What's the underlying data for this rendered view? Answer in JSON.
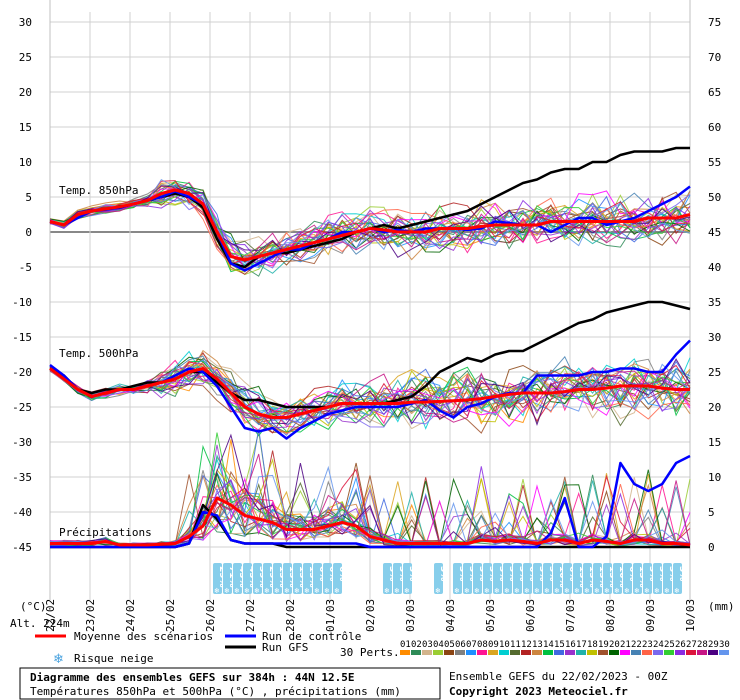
{
  "chart_data": {
    "type": "line",
    "title": "Diagramme des ensembles GEFS sur 384h : 44N 12.5E",
    "subtitle": "Températures 850hPa et 500hPa (°C) , précipitations (mm)",
    "run_info": "Ensemble GEFS du 22/02/2023 - 00Z",
    "copyright": "Copyright 2023 Meteociel.fr",
    "left_axis_unit": "(°C)",
    "right_axis_unit": "(mm)",
    "altitude": "Alt. 224m",
    "left_ticks": [
      30,
      25,
      20,
      15,
      10,
      5,
      0,
      -5,
      -10,
      -15,
      -20,
      -25,
      -30,
      -35,
      -40,
      -45
    ],
    "right_ticks": [
      75,
      70,
      65,
      60,
      55,
      50,
      45,
      40,
      35,
      30,
      25,
      20,
      15,
      10,
      5,
      0
    ],
    "ylim": [
      -45,
      30
    ],
    "y2lim": [
      0,
      75
    ],
    "x_labels": [
      "22/02",
      "23/02",
      "24/02",
      "25/02",
      "26/02",
      "27/02",
      "28/02",
      "01/03",
      "02/03",
      "03/03",
      "04/03",
      "05/03",
      "06/03",
      "07/03",
      "08/03",
      "09/03",
      "10/03"
    ],
    "panel_labels": {
      "t850": "Temp. 850hPa",
      "t500": "Temp. 500hPa",
      "precip": "Précipitations"
    },
    "legend": {
      "mean": "Moyenne des scénarios",
      "control": "Run de contrôle",
      "gfs": "Run GFS",
      "snow": "Risque neige",
      "perts": "30 Perts."
    },
    "pert_numbers": [
      "01",
      "02",
      "03",
      "04",
      "05",
      "06",
      "07",
      "08",
      "09",
      "10",
      "11",
      "12",
      "13",
      "14",
      "15",
      "16",
      "17",
      "18",
      "19",
      "20",
      "21",
      "22",
      "23",
      "24",
      "25",
      "26",
      "27",
      "28",
      "29",
      "30"
    ],
    "pert_colors": [
      "#ff8c00",
      "#2e8b57",
      "#d2b48c",
      "#9acd32",
      "#8b4513",
      "#808080",
      "#1e90ff",
      "#ff1493",
      "#daa520",
      "#00ced1",
      "#556b2f",
      "#b22222",
      "#cd853f",
      "#00c040",
      "#4169e1",
      "#9932cc",
      "#20b2aa",
      "#c0c000",
      "#a0522d",
      "#006400",
      "#ff00ff",
      "#4682b4",
      "#ff6347",
      "#7b68ee",
      "#32cd32",
      "#8a2be2",
      "#dc143c",
      "#c71585",
      "#4b0082",
      "#6495ed"
    ],
    "colors": {
      "mean": "#ff0000",
      "control": "#0000ff",
      "gfs": "#000000",
      "snow_box": "#87ceeb"
    },
    "snow_risk": {
      "group1": [
        "29%",
        "71%",
        "45%",
        "45%",
        "39%",
        "29%",
        "13%",
        "13%",
        "13%",
        "13%",
        "6%",
        "6%",
        "6%"
      ],
      "group2": [
        "3%",
        "3%",
        "3%"
      ],
      "group3": [
        "3%"
      ],
      "group4": [
        "3%",
        "3%",
        "3%",
        "3%",
        "3%",
        "3%",
        "3%",
        "6%",
        "3%",
        "3%",
        "10%",
        "6%",
        "13%",
        "13%",
        "13%",
        "13%",
        "10%",
        "6%",
        "13%",
        "3%",
        "3%",
        "3%",
        "3%"
      ]
    },
    "series": [
      {
        "name": "Moyenne des scénarios",
        "t850": [
          1.5,
          1,
          2.5,
          3,
          3.3,
          3.6,
          4,
          4.5,
          5.5,
          6,
          5.5,
          4,
          0,
          -3.5,
          -4,
          -3.5,
          -3,
          -2.5,
          -2,
          -1.5,
          -1,
          -0.5,
          0,
          0.5,
          0.3,
          0,
          0,
          0,
          0.5,
          0.5,
          0.5,
          0.8,
          1,
          1,
          1,
          1,
          1.5,
          1.5,
          1.5,
          1.5,
          1.5,
          1.5,
          1.5,
          2,
          2,
          2,
          2.5
        ],
        "t500": [
          -19.5,
          -21,
          -22.5,
          -23.5,
          -23,
          -22.5,
          -22.5,
          -22,
          -21.5,
          -21,
          -20,
          -19.5,
          -21,
          -23,
          -25,
          -26,
          -26.5,
          -26.5,
          -26,
          -25.5,
          -25,
          -24.5,
          -24.5,
          -24.5,
          -24.5,
          -24.5,
          -24.3,
          -24.3,
          -24.2,
          -24.1,
          -24,
          -23.8,
          -23.5,
          -23.2,
          -23,
          -23,
          -23,
          -22.8,
          -22.5,
          -22.5,
          -22.3,
          -22,
          -22,
          -22,
          -22.3,
          -22.5,
          -22.5
        ],
        "precip": [
          0.5,
          0.5,
          0.5,
          0.5,
          0.8,
          0.3,
          0.3,
          0.3,
          0.4,
          0.5,
          1.5,
          3,
          7,
          6,
          4.5,
          4,
          3.5,
          2.5,
          2.5,
          2.5,
          3,
          3.5,
          3,
          1.5,
          1,
          0.5,
          0.5,
          0.5,
          0.5,
          0.5,
          0.5,
          1,
          0.8,
          1,
          0.8,
          0.5,
          1,
          1,
          0.5,
          1,
          0.8,
          0.5,
          1,
          1,
          0.5,
          0.5,
          0.3
        ]
      },
      {
        "name": "Run de contrôle",
        "t850": [
          1.5,
          1,
          2,
          3,
          3.2,
          3.5,
          4,
          4.5,
          5,
          5.8,
          5,
          4,
          0,
          -4.5,
          -5.5,
          -4.5,
          -3.5,
          -2.5,
          -2.5,
          -1.5,
          -1,
          0,
          0,
          0.5,
          0,
          0.3,
          0,
          0.5,
          0.5,
          0.5,
          0.3,
          0.5,
          1.5,
          1.3,
          1,
          1,
          0,
          1,
          2,
          2,
          1,
          1.5,
          2,
          3,
          4,
          5,
          6.5
        ],
        "t500": [
          -19,
          -20.5,
          -22.5,
          -23.5,
          -23,
          -22.5,
          -22.5,
          -22,
          -21.5,
          -20.5,
          -19.5,
          -20,
          -22,
          -25,
          -28,
          -28.5,
          -28,
          -29.5,
          -28,
          -27,
          -26,
          -25.5,
          -25,
          -25,
          -25,
          -25,
          -24.5,
          -24,
          -25.5,
          -26.5,
          -25,
          -24.5,
          -23.5,
          -23,
          -23,
          -20.5,
          -20.5,
          -20.5,
          -20.5,
          -20,
          -20,
          -19.5,
          -19.5,
          -20,
          -20,
          -17.5,
          -15.5
        ],
        "precip": [
          0,
          0,
          0,
          0,
          0,
          0,
          0,
          0,
          0,
          0,
          0.5,
          5,
          4.5,
          1,
          0.5,
          0.5,
          0.5,
          0.5,
          0.5,
          0.5,
          0.5,
          0.5,
          0.5,
          0,
          0,
          0,
          0,
          0,
          0,
          0,
          0,
          0,
          0,
          0,
          0,
          0,
          2,
          7,
          0,
          0,
          1.5,
          12,
          9,
          8,
          9,
          12,
          13
        ]
      },
      {
        "name": "Run GFS",
        "t850": [
          1.5,
          1,
          2.5,
          3,
          3.3,
          3.5,
          4,
          4.5,
          5,
          5.5,
          5,
          3.5,
          -1,
          -4.5,
          -5,
          -3.5,
          -3,
          -3,
          -2.5,
          -2,
          -1.5,
          -1,
          0,
          0.5,
          1,
          0.5,
          1,
          1.5,
          2,
          2.5,
          3,
          4,
          5,
          6,
          7,
          7.5,
          8.5,
          9,
          9,
          10,
          10,
          11,
          11.5,
          11.5,
          11.5,
          12,
          12
        ],
        "t500": [
          -19.5,
          -20.5,
          -22.5,
          -23,
          -22.5,
          -22.5,
          -22,
          -21.5,
          -21.5,
          -21,
          -20,
          -20,
          -21.5,
          -23,
          -24,
          -24,
          -24.5,
          -25,
          -25,
          -25,
          -25,
          -24.5,
          -24.5,
          -24.5,
          -24.5,
          -24,
          -23.5,
          -22,
          -20,
          -19,
          -18,
          -18.5,
          -17.5,
          -17,
          -17,
          -16,
          -15,
          -14,
          -13,
          -12.5,
          -11.5,
          -11,
          -10.5,
          -10,
          -10,
          -10.5,
          -11
        ],
        "precip": [
          0,
          0,
          0,
          0,
          0,
          0,
          0,
          0,
          0,
          0,
          0.5,
          6,
          4,
          1,
          0.5,
          0.5,
          0.5,
          0,
          0,
          0,
          0,
          0,
          0,
          0,
          0,
          0,
          0,
          0,
          0,
          0,
          0,
          0,
          0,
          0,
          0,
          0,
          0,
          0,
          0,
          0,
          0,
          0,
          0,
          0,
          0,
          0,
          0
        ]
      }
    ]
  }
}
